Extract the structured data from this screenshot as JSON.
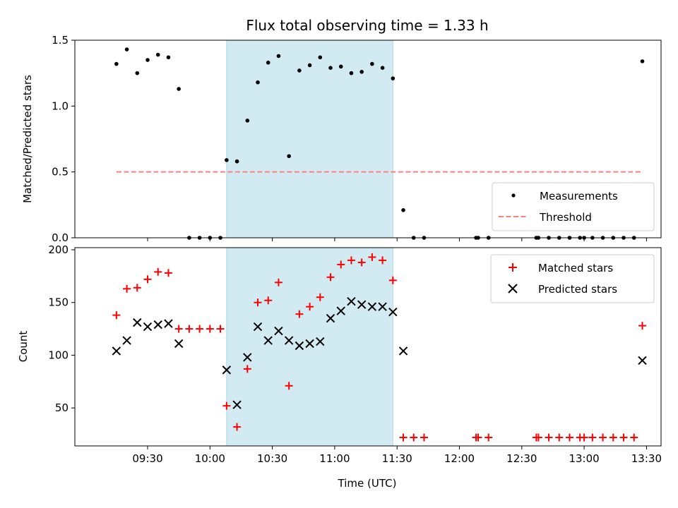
{
  "title": "Flux total observing time = 1.33 h",
  "chart_data": [
    {
      "type": "scatter",
      "ylabel": "Matched/Predicted stars",
      "ylim": [
        0,
        1.5
      ],
      "yticks": [
        0.0,
        0.5,
        1.0,
        1.5
      ],
      "ytick_labels": [
        "0.0",
        "0.5",
        "1.0",
        "1.5"
      ],
      "shaded_interval": [
        "10:08",
        "11:28"
      ],
      "shade_color": "#add8e6",
      "legend": {
        "location": "lower-right",
        "entries": [
          "Measurements",
          "Threshold"
        ]
      },
      "series": [
        {
          "name": "Measurements",
          "color": "#000000",
          "marker": "dot",
          "points": [
            [
              "09:15",
              1.32
            ],
            [
              "09:20",
              1.43
            ],
            [
              "09:25",
              1.25
            ],
            [
              "09:30",
              1.35
            ],
            [
              "09:35",
              1.39
            ],
            [
              "09:40",
              1.37
            ],
            [
              "09:45",
              1.13
            ],
            [
              "09:50",
              0.0
            ],
            [
              "09:55",
              0.0
            ],
            [
              "10:00",
              0.0
            ],
            [
              "10:05",
              0.0
            ],
            [
              "10:08",
              0.59
            ],
            [
              "10:13",
              0.58
            ],
            [
              "10:18",
              0.89
            ],
            [
              "10:23",
              1.18
            ],
            [
              "10:28",
              1.33
            ],
            [
              "10:33",
              1.38
            ],
            [
              "10:38",
              0.62
            ],
            [
              "10:43",
              1.27
            ],
            [
              "10:48",
              1.31
            ],
            [
              "10:53",
              1.37
            ],
            [
              "10:58",
              1.29
            ],
            [
              "11:03",
              1.3
            ],
            [
              "11:08",
              1.25
            ],
            [
              "11:13",
              1.26
            ],
            [
              "11:18",
              1.32
            ],
            [
              "11:23",
              1.29
            ],
            [
              "11:28",
              1.21
            ],
            [
              "11:33",
              0.21
            ],
            [
              "11:38",
              0.0
            ],
            [
              "11:43",
              0.0
            ],
            [
              "12:08",
              0.0
            ],
            [
              "12:09",
              0.0
            ],
            [
              "12:14",
              0.0
            ],
            [
              "12:37",
              0.0
            ],
            [
              "12:38",
              0.0
            ],
            [
              "12:43",
              0.0
            ],
            [
              "12:48",
              0.0
            ],
            [
              "12:53",
              0.0
            ],
            [
              "12:58",
              0.0
            ],
            [
              "13:00",
              0.0
            ],
            [
              "13:04",
              0.0
            ],
            [
              "13:09",
              0.0
            ],
            [
              "13:14",
              0.0
            ],
            [
              "13:19",
              0.0
            ],
            [
              "13:24",
              0.0
            ],
            [
              "13:28",
              1.34
            ]
          ]
        },
        {
          "name": "Threshold",
          "color": "#ff7f7f",
          "style": "dashed",
          "points": [
            [
              "09:15",
              0.5
            ],
            [
              "13:28",
              0.5
            ]
          ]
        }
      ]
    },
    {
      "type": "scatter",
      "xlabel": "Time (UTC)",
      "ylabel": "Count",
      "ylim": [
        14,
        202
      ],
      "yticks": [
        50,
        100,
        150,
        200
      ],
      "ytick_labels": [
        "50",
        "100",
        "150",
        "200"
      ],
      "xlim": [
        "08:55",
        "13:37"
      ],
      "xticks": [
        "09:30",
        "10:00",
        "10:30",
        "11:00",
        "11:30",
        "12:00",
        "12:30",
        "13:00",
        "13:30"
      ],
      "xtick_labels": [
        "09:30",
        "10:00",
        "10:30",
        "11:00",
        "11:30",
        "12:00",
        "12:30",
        "13:00",
        "13:30"
      ],
      "shaded_interval": [
        "10:08",
        "11:28"
      ],
      "shade_color": "#add8e6",
      "legend": {
        "location": "top-right",
        "entries": [
          "Matched stars",
          "Predicted stars"
        ]
      },
      "series": [
        {
          "name": "Matched stars",
          "color": "#ff0000",
          "marker": "plus",
          "points": [
            [
              "09:15",
              138
            ],
            [
              "09:20",
              163
            ],
            [
              "09:25",
              164
            ],
            [
              "09:30",
              172
            ],
            [
              "09:35",
              179
            ],
            [
              "09:40",
              178
            ],
            [
              "09:45",
              125
            ],
            [
              "09:50",
              125
            ],
            [
              "09:55",
              125
            ],
            [
              "10:00",
              125
            ],
            [
              "10:05",
              125
            ],
            [
              "10:08",
              52
            ],
            [
              "10:13",
              32
            ],
            [
              "10:18",
              87
            ],
            [
              "10:23",
              150
            ],
            [
              "10:28",
              152
            ],
            [
              "10:33",
              169
            ],
            [
              "10:38",
              71
            ],
            [
              "10:43",
              139
            ],
            [
              "10:48",
              146
            ],
            [
              "10:53",
              155
            ],
            [
              "10:58",
              174
            ],
            [
              "11:03",
              186
            ],
            [
              "11:08",
              190
            ],
            [
              "11:13",
              188
            ],
            [
              "11:18",
              193
            ],
            [
              "11:23",
              190
            ],
            [
              "11:28",
              171
            ],
            [
              "11:33",
              22
            ],
            [
              "11:38",
              22
            ],
            [
              "11:43",
              22
            ],
            [
              "12:08",
              22
            ],
            [
              "12:09",
              22
            ],
            [
              "12:14",
              22
            ],
            [
              "12:37",
              22
            ],
            [
              "12:38",
              22
            ],
            [
              "12:43",
              22
            ],
            [
              "12:48",
              22
            ],
            [
              "12:53",
              22
            ],
            [
              "12:58",
              22
            ],
            [
              "13:00",
              22
            ],
            [
              "13:04",
              22
            ],
            [
              "13:09",
              22
            ],
            [
              "13:14",
              22
            ],
            [
              "13:19",
              22
            ],
            [
              "13:24",
              22
            ],
            [
              "13:28",
              128
            ]
          ]
        },
        {
          "name": "Predicted stars",
          "color": "#000000",
          "marker": "x",
          "points": [
            [
              "09:15",
              104
            ],
            [
              "09:20",
              114
            ],
            [
              "09:25",
              131
            ],
            [
              "09:30",
              127
            ],
            [
              "09:35",
              129
            ],
            [
              "09:40",
              130
            ],
            [
              "09:45",
              111
            ],
            [
              "10:08",
              86
            ],
            [
              "10:13",
              53
            ],
            [
              "10:18",
              98
            ],
            [
              "10:23",
              127
            ],
            [
              "10:28",
              114
            ],
            [
              "10:33",
              123
            ],
            [
              "10:38",
              114
            ],
            [
              "10:43",
              109
            ],
            [
              "10:48",
              111
            ],
            [
              "10:53",
              113
            ],
            [
              "10:58",
              135
            ],
            [
              "11:03",
              142
            ],
            [
              "11:08",
              151
            ],
            [
              "11:13",
              148
            ],
            [
              "11:18",
              146
            ],
            [
              "11:23",
              146
            ],
            [
              "11:28",
              141
            ],
            [
              "11:33",
              104
            ],
            [
              "13:28",
              95
            ]
          ]
        }
      ]
    }
  ]
}
